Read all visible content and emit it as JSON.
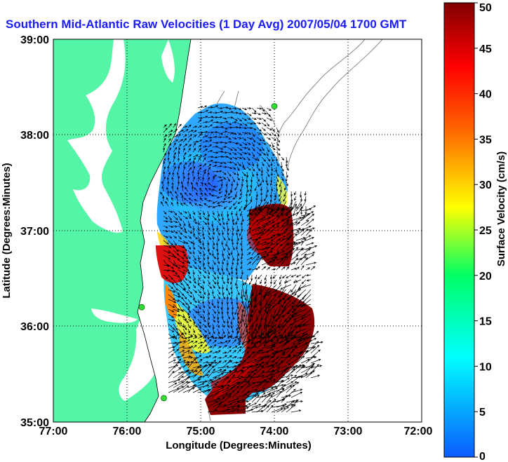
{
  "title": "Southern Mid-Atlantic Raw Velocities (1 Day Avg) 2007/05/04 1700 GMT",
  "map": {
    "xlabel": "Longitude (Degrees:Minutes)",
    "ylabel": "Latitude (Degrees:Minutes)",
    "x_ticks": [
      "77:00",
      "76:00",
      "75:00",
      "74:00",
      "73:00",
      "72:00"
    ],
    "y_ticks": [
      "39:00",
      "38:00",
      "37:00",
      "36:00",
      "35:00"
    ],
    "lon_range": [
      -77,
      -72
    ],
    "lat_range": [
      35,
      39
    ],
    "grid": "dotted",
    "land_color": "#55f5a8",
    "station_color": "#33dd33",
    "stations": [
      {
        "lon": -74.0,
        "lat": 38.3
      },
      {
        "lon": -75.8,
        "lat": 36.2
      },
      {
        "lon": -75.5,
        "lat": 35.25
      }
    ]
  },
  "colorbar": {
    "label": "Surface Velocity (cm/s)",
    "ticks": [
      "50",
      "45",
      "40",
      "35",
      "30",
      "25",
      "20",
      "15",
      "10",
      "5",
      "0"
    ],
    "range": [
      0,
      50
    ],
    "stops": [
      "#0a5cff",
      "#00ffff",
      "#00ff66",
      "#ffff00",
      "#ff6600",
      "#ff0000",
      "#800000"
    ]
  },
  "velocity_regions": [
    {
      "name": "north-lobe-low-speed",
      "speed_cm_s": 8
    },
    {
      "name": "central-offshore-jet",
      "speed_cm_s": 48
    },
    {
      "name": "southern-outflow",
      "speed_cm_s": 50
    }
  ]
}
